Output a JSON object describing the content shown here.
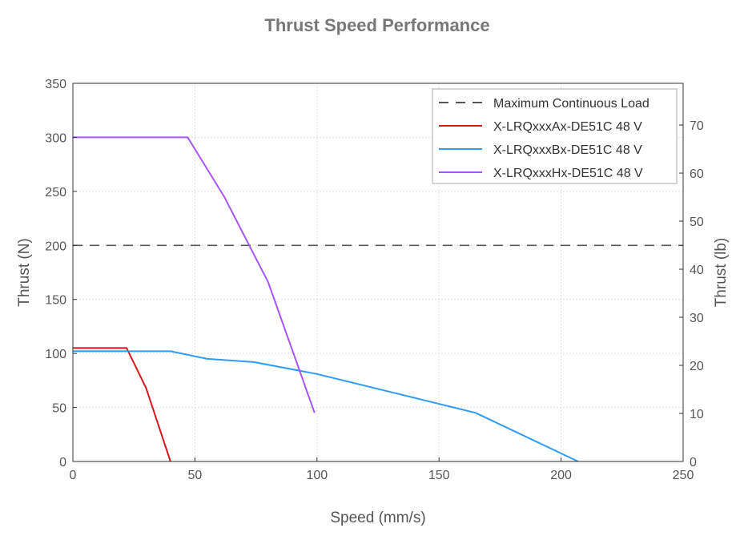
{
  "chart_data": {
    "type": "line",
    "title": "Thrust Speed Performance",
    "xlabel": "Speed (mm/s)",
    "ylabel": "Thrust (N)",
    "ylabel_right": "Thrust (lb)",
    "xlim": [
      0,
      250
    ],
    "ylim": [
      0,
      350
    ],
    "ylim_right": [
      0,
      78.68
    ],
    "xticks": [
      "0",
      "50",
      "100",
      "150",
      "200",
      "250"
    ],
    "yticks": [
      "0",
      "50",
      "100",
      "150",
      "200",
      "250",
      "300",
      "350"
    ],
    "yticks_right": [
      "0",
      "10",
      "20",
      "30",
      "40",
      "50",
      "60",
      "70"
    ],
    "grid": true,
    "legend_position": "top-right",
    "series": [
      {
        "name": "Maximum Continuous Load",
        "color": "#555555",
        "style": "dashed",
        "x": [
          0,
          250
        ],
        "y": [
          200,
          200
        ]
      },
      {
        "name": "X-LRQxxxAx-DE51C 48 V",
        "color": "#d11a1a",
        "style": "solid",
        "x": [
          0,
          22,
          30,
          40
        ],
        "y": [
          105,
          105,
          68,
          0
        ]
      },
      {
        "name": "X-LRQxxxBx-DE51C 48 V",
        "color": "#2f9bf5",
        "style": "solid",
        "x": [
          0,
          40,
          55,
          74,
          100,
          165,
          207
        ],
        "y": [
          102,
          102,
          95,
          92,
          81,
          45,
          0
        ]
      },
      {
        "name": "X-LRQxxxHx-DE51C 48 V",
        "color": "#a855f7",
        "style": "solid",
        "x": [
          0,
          47,
          62,
          80,
          99
        ],
        "y": [
          300,
          300,
          245,
          166,
          45
        ]
      }
    ]
  }
}
